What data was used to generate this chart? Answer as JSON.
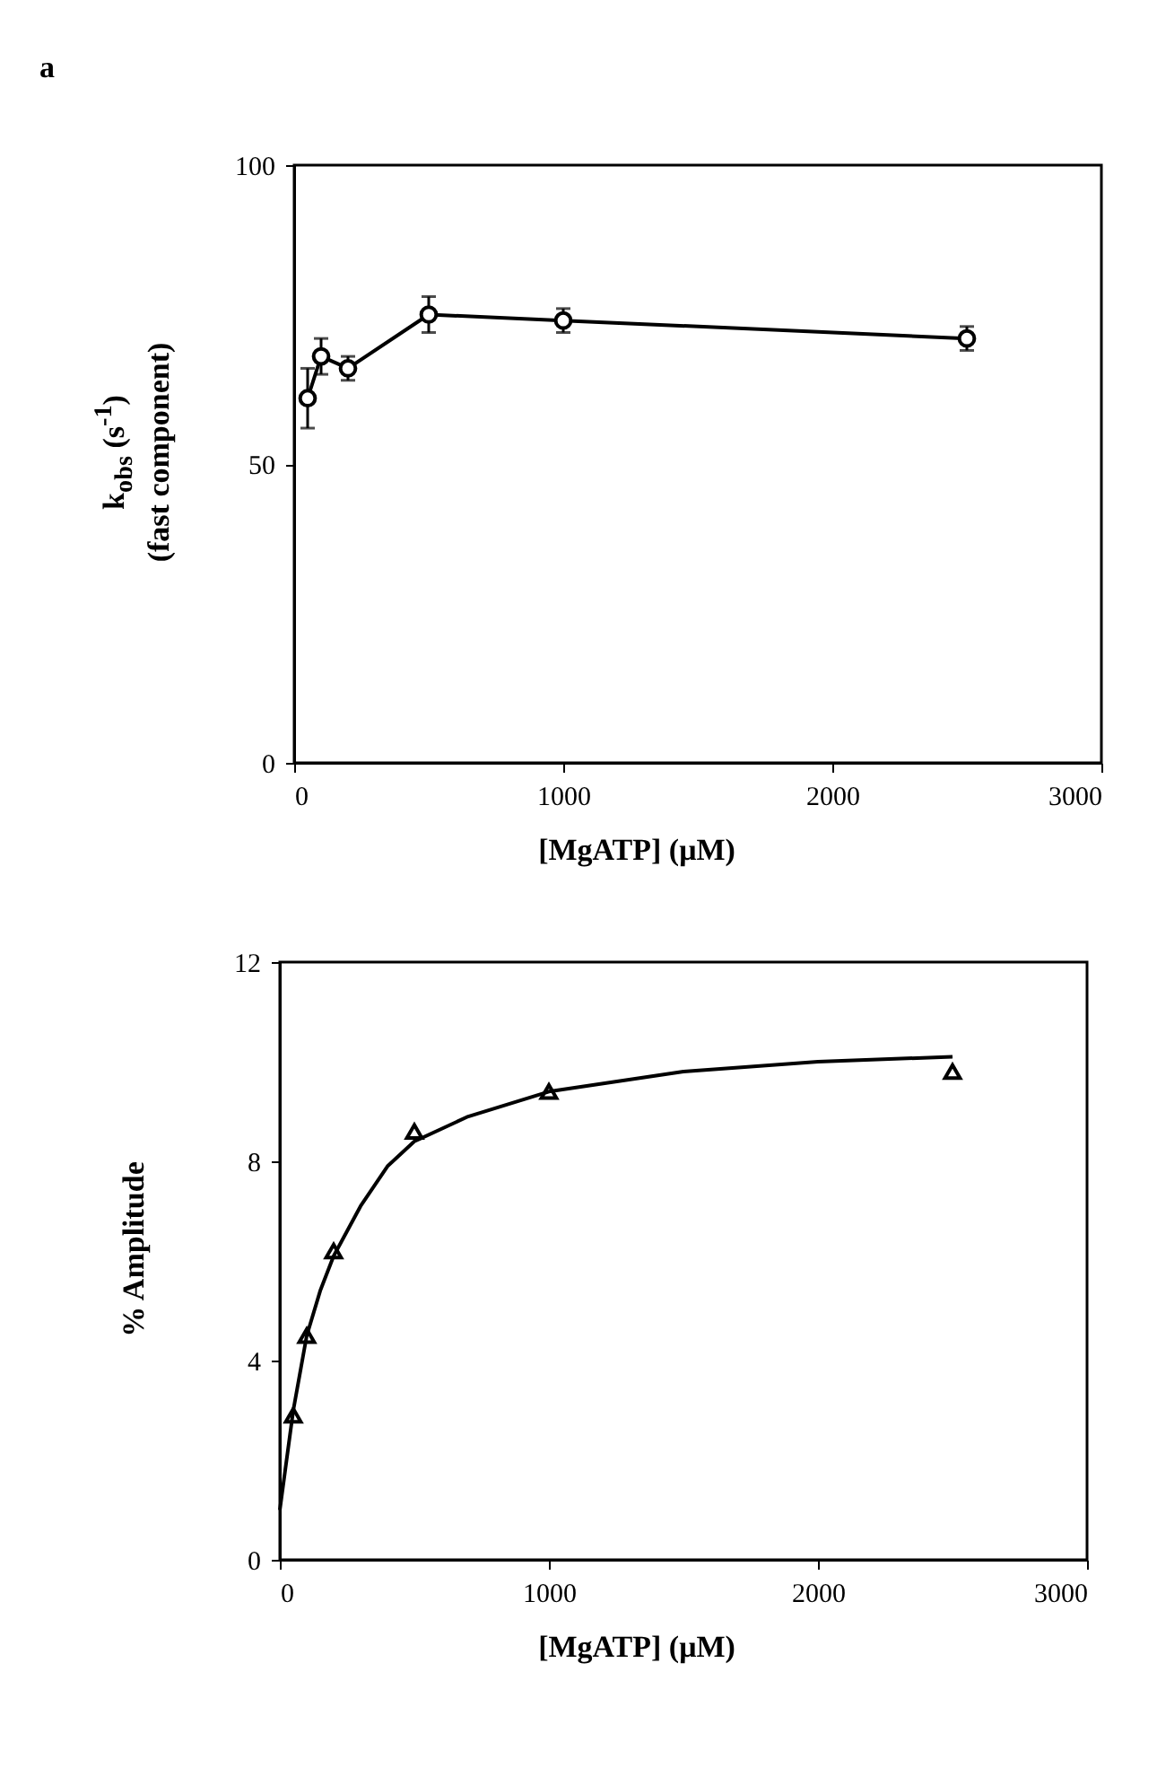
{
  "chart_data": [
    {
      "type": "line",
      "annotations": [
        "a"
      ],
      "xlabel": "[MgATP]  (μM)",
      "ylabel": "k$_{obs}$ (s$^{-1}$)\n(fast component)",
      "x": [
        50,
        100,
        200,
        500,
        1000,
        2500
      ],
      "series": [
        {
          "color": "#000000",
          "values": [
            61,
            68,
            66,
            75,
            74,
            71
          ],
          "errors": [
            5,
            3,
            2,
            3,
            2,
            2
          ]
        }
      ],
      "xlim": [
        0,
        3000
      ],
      "xticks": [
        0,
        1000,
        2000,
        3000
      ],
      "ylim": [
        0,
        100
      ],
      "yticks": [
        0,
        50,
        100
      ],
      "marker": "circle",
      "line_style": "solid",
      "grid": false
    },
    {
      "type": "scatter",
      "xlabel": "[MgATP]  (μM)",
      "ylabel": "% Amplitude",
      "series": [
        {
          "type": "scatter",
          "color": "#000000",
          "x": [
            50,
            100,
            200,
            500,
            1000,
            2500
          ],
          "values": [
            2.9,
            4.5,
            6.2,
            8.6,
            9.4,
            9.8
          ]
        },
        {
          "type": "line",
          "color": "#000000",
          "marker": "none",
          "x": [
            0,
            25,
            50,
            100,
            150,
            200,
            300,
            400,
            500,
            700,
            1000,
            1500,
            2000,
            2500
          ],
          "values": [
            1.0,
            2.0,
            3.0,
            4.5,
            5.4,
            6.1,
            7.1,
            7.9,
            8.4,
            8.9,
            9.4,
            9.8,
            10.0,
            10.1
          ]
        }
      ],
      "xlim": [
        0,
        3000
      ],
      "xticks": [
        0,
        1000,
        2000,
        3000
      ],
      "ylim": [
        0,
        12
      ],
      "yticks": [
        0,
        4,
        8,
        12
      ],
      "marker": "triangle",
      "line_style": "solid",
      "grid": false
    }
  ]
}
